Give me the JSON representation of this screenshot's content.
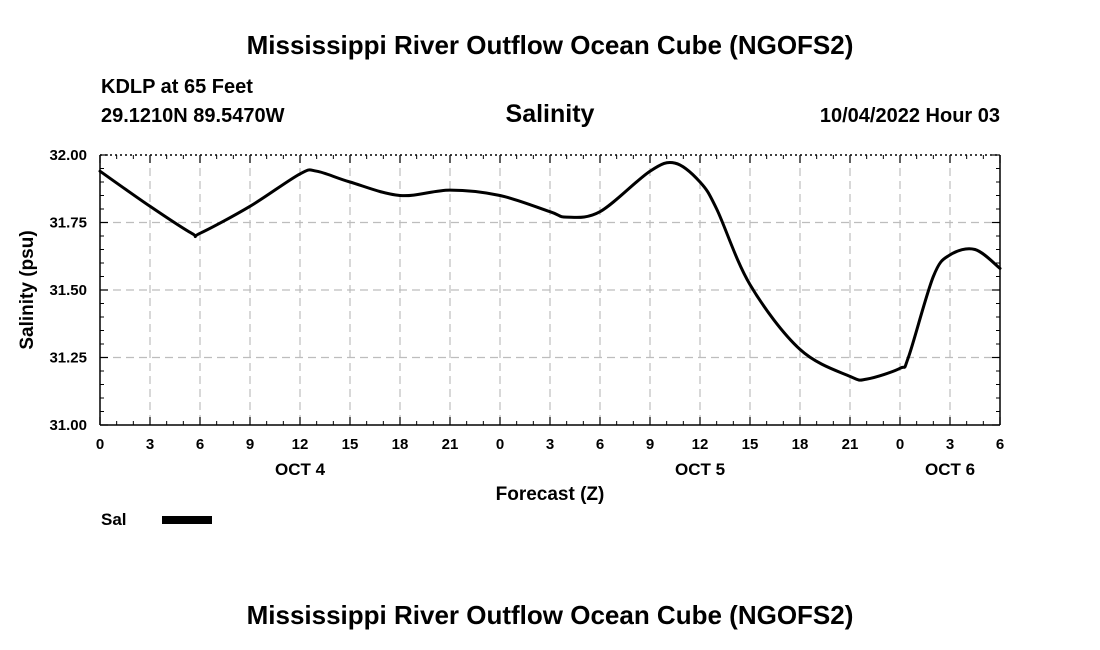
{
  "page": {
    "title": "Mississippi River Outflow Ocean Cube (NGOFS2)",
    "footer_title": "Mississippi River Outflow Ocean Cube (NGOFS2)"
  },
  "station": {
    "name": "KDLP at 65 Feet",
    "coords": "29.1210N  89.5470W",
    "datetime": "10/04/2022 Hour 03"
  },
  "legend": {
    "label": "Sal",
    "color": "#000000"
  },
  "chart_data": {
    "type": "line",
    "title": "Salinity",
    "xlabel": "Forecast (Z)",
    "ylabel": "Salinity (psu)",
    "xlim": [
      0,
      54
    ],
    "ylim": [
      31.0,
      32.0
    ],
    "grid": true,
    "x_ticks": [
      0,
      3,
      6,
      9,
      12,
      15,
      18,
      21,
      24,
      27,
      30,
      33,
      36,
      39,
      42,
      45,
      48,
      51,
      54
    ],
    "x_tick_labels": [
      "0",
      "3",
      "6",
      "9",
      "12",
      "15",
      "18",
      "21",
      "0",
      "3",
      "6",
      "9",
      "12",
      "15",
      "18",
      "21",
      "0",
      "3",
      "6"
    ],
    "y_ticks": [
      31.0,
      31.25,
      31.5,
      31.75,
      32.0
    ],
    "y_tick_labels": [
      "31.00",
      "31.25",
      "31.50",
      "31.75",
      "32.00"
    ],
    "date_labels": [
      {
        "x": 12,
        "label": "OCT 4"
      },
      {
        "x": 36,
        "label": "OCT 5"
      },
      {
        "x": 51,
        "label": "OCT 6"
      }
    ],
    "series": [
      {
        "name": "Sal",
        "x": [
          0,
          3,
          5.5,
          6,
          9,
          12,
          13,
          15,
          18,
          21,
          24,
          27,
          28,
          30,
          33,
          34.5,
          36,
          37,
          39,
          42,
          45,
          46,
          48,
          48.5,
          50,
          51,
          52.5,
          54
        ],
        "values": [
          31.94,
          31.81,
          31.71,
          31.71,
          31.81,
          31.93,
          31.94,
          31.9,
          31.85,
          31.87,
          31.85,
          31.79,
          31.77,
          31.79,
          31.94,
          31.97,
          31.9,
          31.8,
          31.52,
          31.28,
          31.18,
          31.17,
          31.21,
          31.25,
          31.55,
          31.63,
          31.65,
          31.58
        ]
      }
    ]
  }
}
